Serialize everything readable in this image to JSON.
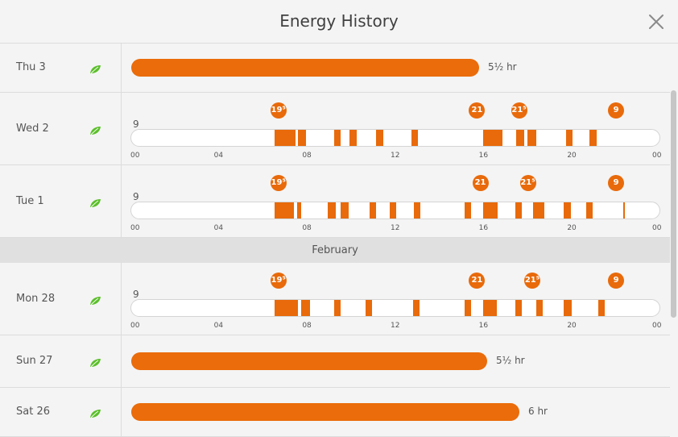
{
  "header": {
    "title": "Energy History"
  },
  "colors": {
    "accent": "#e86a0a",
    "leaf": "#5bbf2a"
  },
  "tick_labels": [
    "00",
    "04",
    "08",
    "12",
    "16",
    "20",
    "00"
  ],
  "rows": [
    {
      "type": "summary",
      "day": "Thu 3",
      "leaf": true,
      "fraction": 0.656,
      "label": "5½ hr"
    },
    {
      "type": "timeline",
      "day": "Wed 2",
      "leaf": true,
      "start_temp": "9",
      "segments": [
        [
          6.5,
          7.45
        ],
        [
          7.55,
          7.9
        ],
        [
          9.2,
          9.5
        ],
        [
          9.9,
          10.2
        ],
        [
          11.1,
          11.4
        ],
        [
          12.7,
          13.0
        ],
        [
          15.95,
          16.8
        ],
        [
          17.45,
          17.8
        ],
        [
          17.95,
          18.35
        ],
        [
          19.7,
          20.0
        ],
        [
          20.75,
          21.1
        ]
      ],
      "markers": [
        {
          "t": 6.7,
          "label": "19⁵"
        },
        {
          "t": 15.7,
          "label": "21"
        },
        {
          "t": 17.6,
          "label": "21⁵"
        },
        {
          "t": 22.0,
          "label": "9"
        }
      ]
    },
    {
      "type": "timeline",
      "day": "Tue 1",
      "leaf": true,
      "start_temp": "9",
      "segments": [
        [
          6.5,
          7.35
        ],
        [
          7.5,
          7.7
        ],
        [
          8.9,
          9.25
        ],
        [
          9.5,
          9.85
        ],
        [
          10.8,
          11.1
        ],
        [
          11.7,
          12.0
        ],
        [
          12.8,
          13.1
        ],
        [
          15.1,
          15.4
        ],
        [
          15.95,
          16.6
        ],
        [
          17.4,
          17.7
        ],
        [
          18.2,
          18.7
        ],
        [
          19.6,
          19.9
        ],
        [
          20.6,
          20.9
        ],
        [
          22.3,
          22.35
        ]
      ],
      "markers": [
        {
          "t": 6.7,
          "label": "19⁵"
        },
        {
          "t": 15.85,
          "label": "21"
        },
        {
          "t": 18.0,
          "label": "21⁵"
        },
        {
          "t": 22.0,
          "label": "9"
        }
      ]
    },
    {
      "type": "month",
      "label": "February"
    },
    {
      "type": "timeline",
      "day": "Mon 28",
      "leaf": true,
      "start_temp": "9",
      "segments": [
        [
          6.5,
          7.55
        ],
        [
          7.7,
          8.1
        ],
        [
          9.2,
          9.5
        ],
        [
          10.6,
          10.9
        ],
        [
          12.75,
          13.05
        ],
        [
          15.1,
          15.4
        ],
        [
          15.95,
          16.55
        ],
        [
          17.4,
          17.7
        ],
        [
          18.35,
          18.65
        ],
        [
          19.6,
          19.95
        ],
        [
          21.15,
          21.45
        ]
      ],
      "markers": [
        {
          "t": 6.7,
          "label": "19⁵"
        },
        {
          "t": 15.7,
          "label": "21"
        },
        {
          "t": 18.2,
          "label": "21⁵"
        },
        {
          "t": 22.0,
          "label": "9"
        }
      ]
    },
    {
      "type": "summary",
      "day": "Sun 27",
      "leaf": true,
      "fraction": 0.672,
      "label": "5½ hr"
    },
    {
      "type": "summary",
      "day": "Sat 26",
      "leaf": true,
      "fraction": 0.733,
      "label": "6 hr"
    }
  ]
}
